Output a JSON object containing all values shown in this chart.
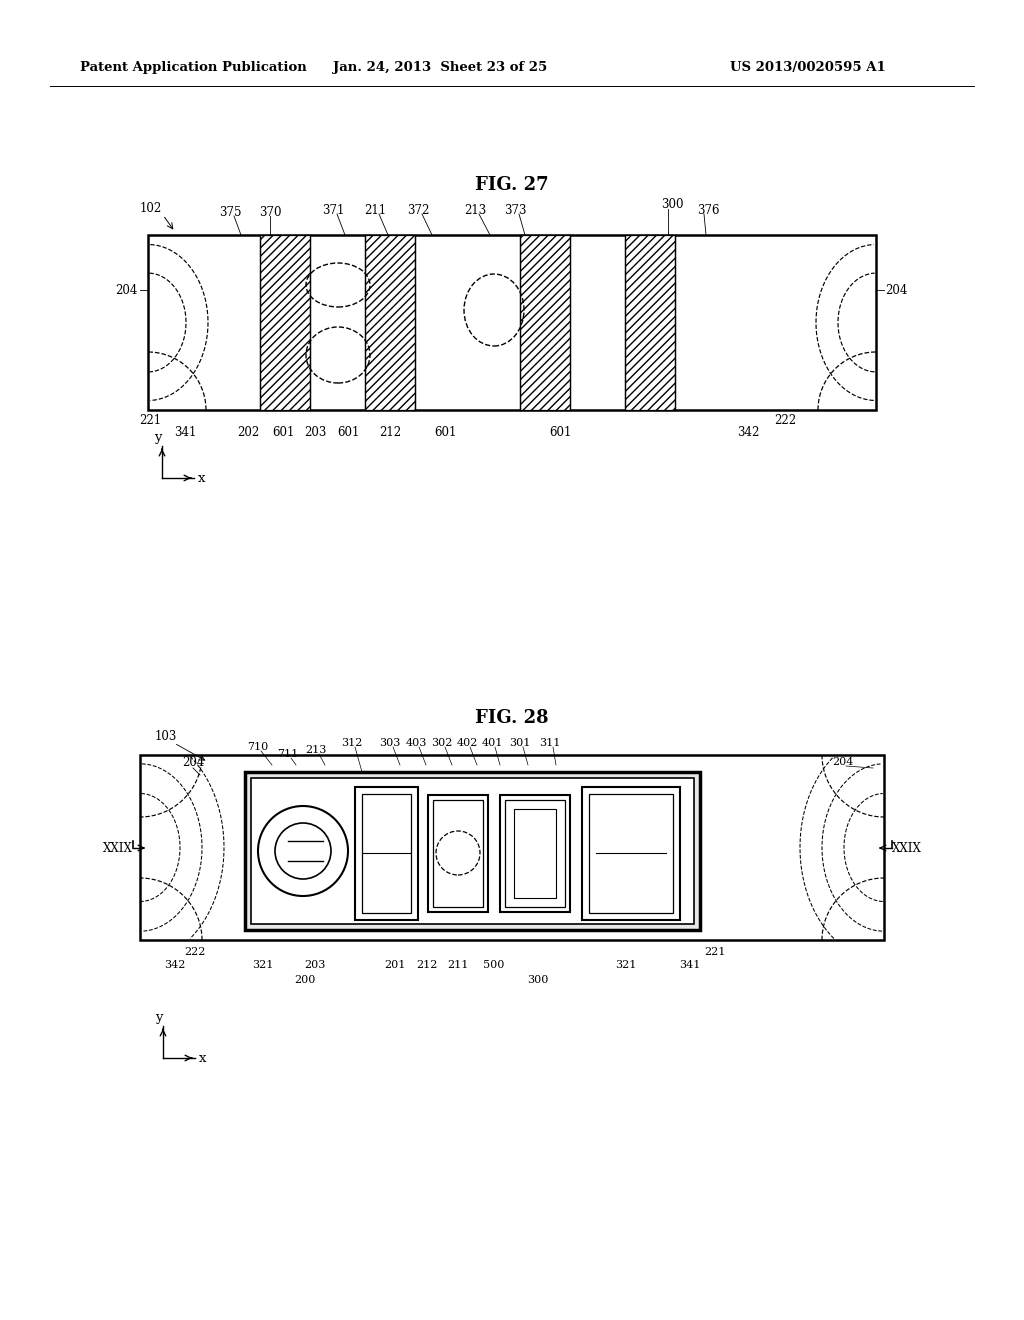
{
  "header_left": "Patent Application Publication",
  "header_mid": "Jan. 24, 2013  Sheet 23 of 25",
  "header_right": "US 2013/0020595 A1",
  "fig27_title": "FIG. 27",
  "fig28_title": "FIG. 28",
  "bg_color": "#ffffff",
  "line_color": "#000000"
}
